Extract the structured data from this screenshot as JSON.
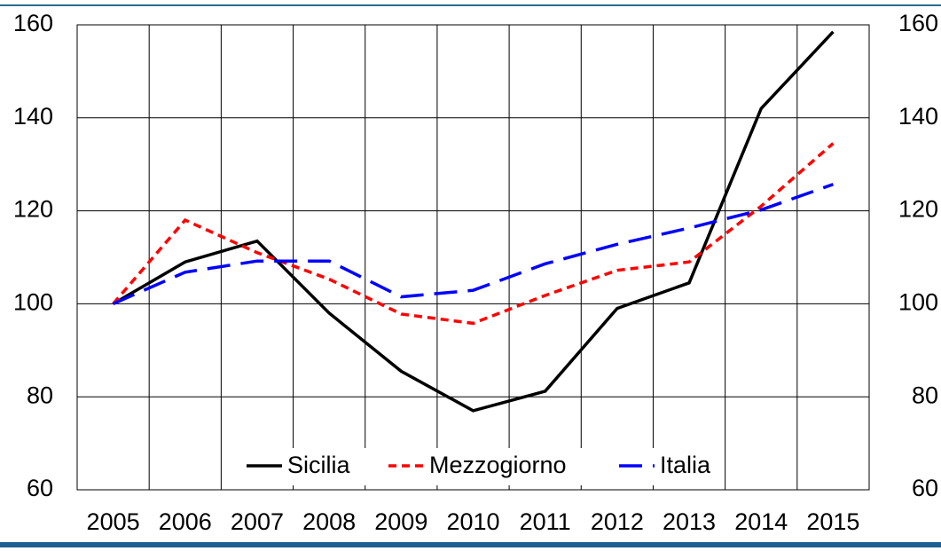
{
  "chart_data": {
    "type": "line",
    "categories": [
      "2005",
      "2006",
      "2007",
      "2008",
      "2009",
      "2010",
      "2011",
      "2012",
      "2013",
      "2014",
      "2015"
    ],
    "series": [
      {
        "name": "Sicilia",
        "color": "#000000",
        "dash": "solid",
        "values": [
          100,
          109,
          113.5,
          98,
          85.5,
          77,
          81.2,
          99,
          104.5,
          142,
          158.5
        ]
      },
      {
        "name": "Mezzogiorno",
        "color": "#ff0000",
        "dash": "dotted",
        "values": [
          100,
          118,
          111,
          105.3,
          97.8,
          95.8,
          101.8,
          107.2,
          109,
          121,
          134.5
        ]
      },
      {
        "name": "Italia",
        "color": "#0000ff",
        "dash": "dashed",
        "values": [
          100,
          106.8,
          109.2,
          109.2,
          101.5,
          102.9,
          108.6,
          112.8,
          116.3,
          120.2,
          125.7
        ]
      }
    ],
    "ylim": [
      60,
      160
    ],
    "yticks": [
      60,
      80,
      100,
      120,
      140,
      160
    ],
    "y2lim": [
      60,
      160
    ],
    "y2ticks": [
      60,
      80,
      100,
      120,
      140,
      160
    ],
    "grid": true,
    "legend": "bottom"
  }
}
